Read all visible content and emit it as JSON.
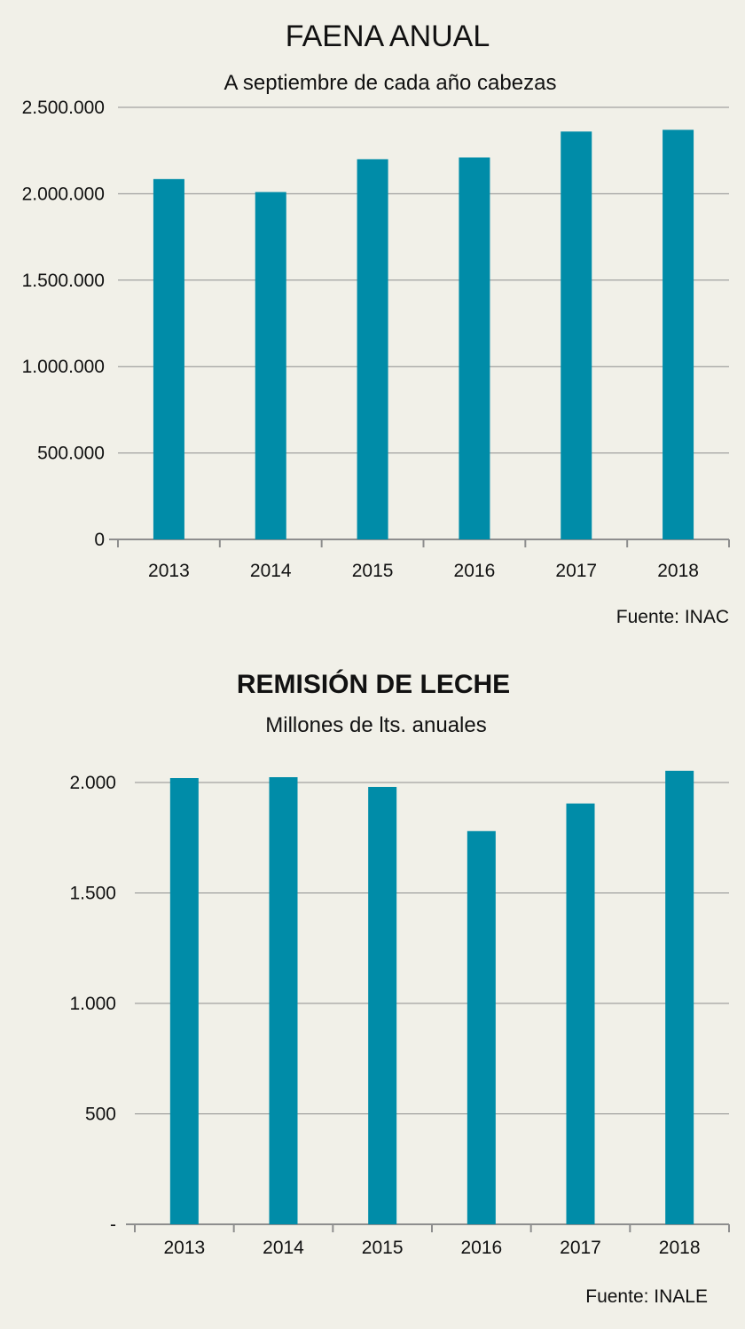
{
  "colors": {
    "background": "#f1f0e8",
    "bar": "#008ca8",
    "grid": "#8e8e8e"
  },
  "chart_data": [
    {
      "type": "bar",
      "title": "FAENA ANUAL",
      "subtitle": "A septiembre de cada año cabezas",
      "source": "Fuente:  INAC",
      "categories": [
        "2013",
        "2014",
        "2015",
        "2016",
        "2017",
        "2018"
      ],
      "values": [
        2085000,
        2010000,
        2200000,
        2210000,
        2360000,
        2370000
      ],
      "ylim": [
        0,
        2500000
      ],
      "yticks": [
        0,
        500000,
        1000000,
        1500000,
        2000000,
        2500000
      ],
      "ytick_labels": [
        "0",
        "500.000",
        "1.000.000",
        "1.500.000",
        "2.000.000",
        "2.500.000"
      ],
      "grid": true,
      "legend": "none"
    },
    {
      "type": "bar",
      "title": "REMISIÓN DE LECHE",
      "subtitle": "Millones de lts. anuales",
      "source": "Fuente: INALE",
      "categories": [
        "2013",
        "2014",
        "2015",
        "2016",
        "2017",
        "2018"
      ],
      "values": [
        2020,
        2024,
        1980,
        1780,
        1905,
        2053
      ],
      "ylim": [
        0,
        2000
      ],
      "yticks": [
        0,
        500,
        1000,
        1500,
        2000
      ],
      "ytick_labels": [
        "-",
        "500",
        "1.000",
        "1.500",
        "2.000"
      ],
      "grid": true,
      "legend": "none"
    }
  ]
}
